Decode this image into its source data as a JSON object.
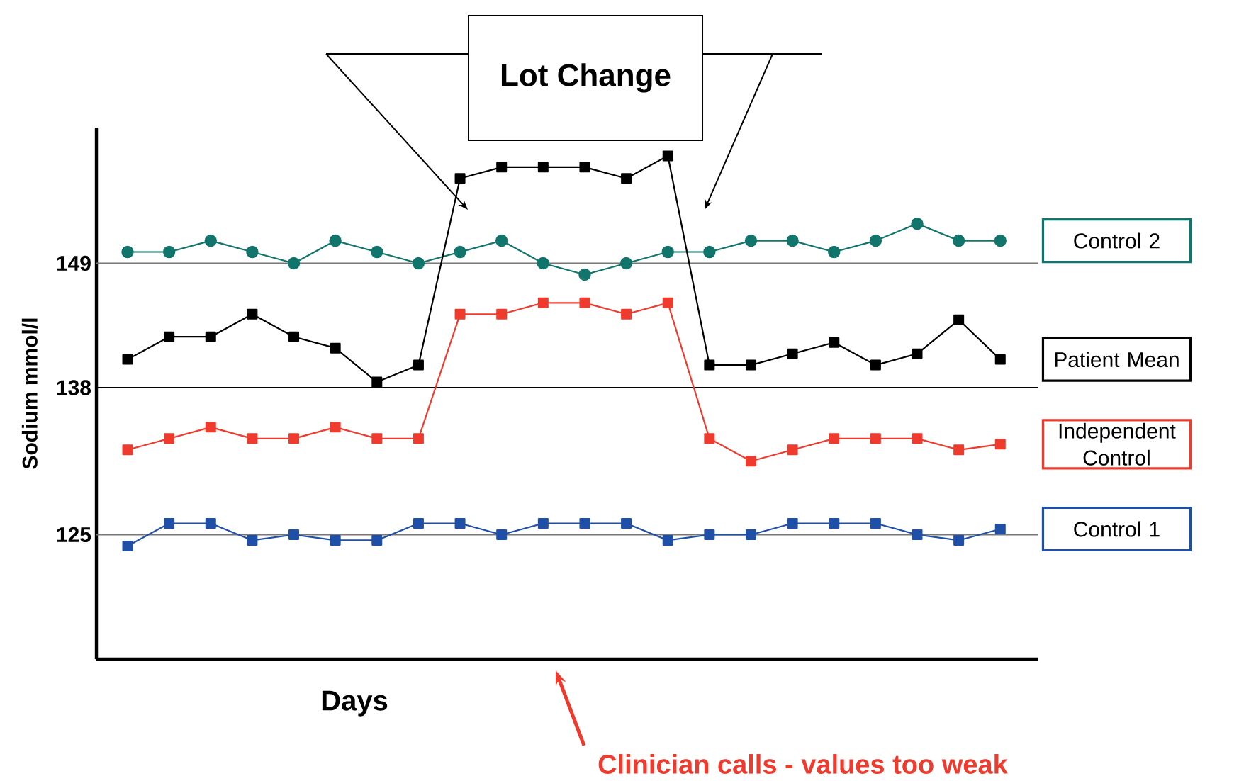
{
  "chart_data": {
    "type": "line",
    "xlabel": "Days",
    "ylabel": "Sodium mmol/l",
    "categories": [
      null,
      null,
      null,
      null,
      null,
      null,
      null,
      null,
      null,
      null,
      null,
      null,
      null,
      null,
      null,
      null,
      null,
      null,
      null,
      null,
      null,
      null
    ],
    "series": [
      {
        "name": "Control 2",
        "color": "#11756b",
        "marker": "circle",
        "values": [
          150,
          150,
          151,
          150,
          149,
          151,
          150,
          149,
          150,
          151,
          149,
          148,
          149,
          150,
          150,
          151,
          151,
          150,
          151,
          152.5,
          151,
          151
        ]
      },
      {
        "name": "Patient Mean",
        "color": "#000000",
        "marker": "square",
        "values": [
          140.5,
          142.5,
          142.5,
          144.5,
          142.5,
          141.5,
          138.5,
          140,
          156.5,
          157.5,
          157.5,
          157.5,
          156.5,
          158.5,
          140,
          140,
          141,
          142,
          140,
          141,
          144,
          140.5
        ]
      },
      {
        "name": "Independent Control",
        "color": "#ee3b2e",
        "marker": "square",
        "values": [
          132.5,
          133.5,
          134.5,
          133.5,
          133.5,
          134.5,
          133.5,
          133.5,
          144.5,
          144.5,
          145.5,
          145.5,
          144.5,
          145.5,
          133.5,
          131.5,
          132.5,
          133.5,
          133.5,
          133.5,
          132.5,
          133
        ]
      },
      {
        "name": "Control 1",
        "color": "#1f4fa6",
        "marker": "square",
        "values": [
          124,
          126,
          126,
          124.5,
          125,
          124.5,
          124.5,
          126,
          126,
          125,
          126,
          126,
          126,
          124.5,
          125,
          125,
          126,
          126,
          126,
          125,
          124.5,
          125.5
        ]
      }
    ],
    "ylim": [
      114,
      161
    ],
    "yticks": [
      125,
      138,
      149
    ],
    "tick_labels": "y",
    "grid": false,
    "legend": false,
    "ref_lines": [
      {
        "axis": "y",
        "value": 149,
        "color": "#777777"
      },
      {
        "axis": "y",
        "value": 138,
        "color": "#000000"
      },
      {
        "axis": "y",
        "value": 125,
        "color": "#777777"
      }
    ],
    "annotations": [
      "Lot Change",
      "Clinician calls - values too weak"
    ]
  }
}
